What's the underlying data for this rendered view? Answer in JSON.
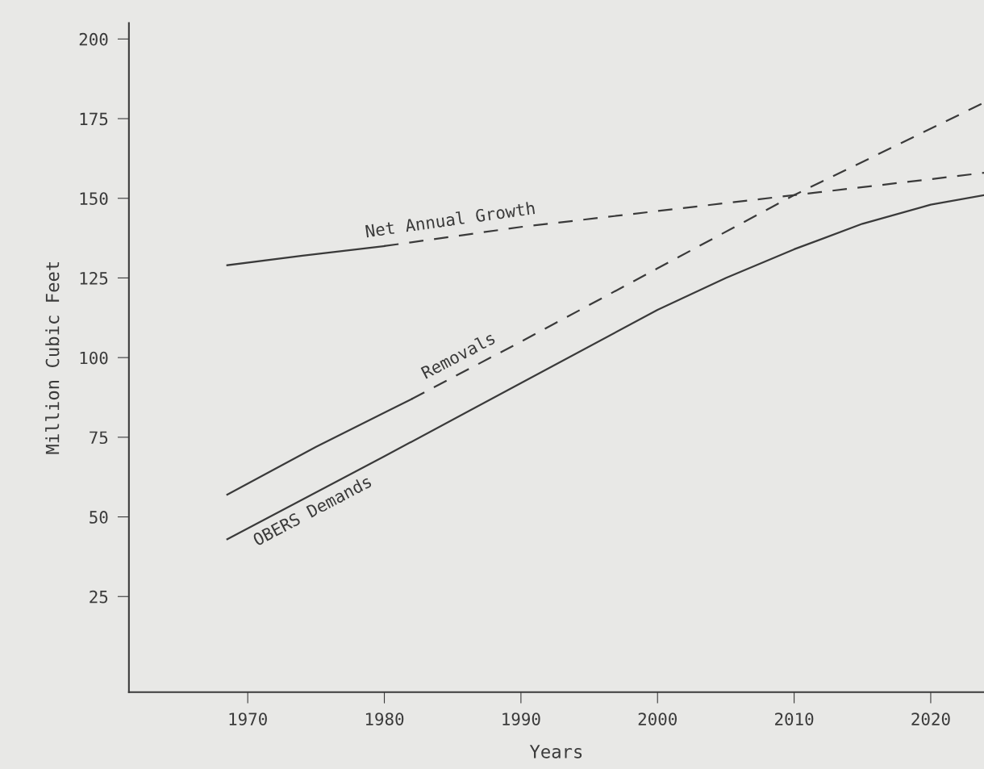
{
  "chart_data": {
    "type": "line",
    "xlabel": "Years",
    "ylabel": "Million Cubic Feet",
    "xlim": [
      1961.3,
      2023.9
    ],
    "ylim": [
      -5,
      205
    ],
    "xticks": [
      1970,
      1980,
      1990,
      2000,
      2010,
      2020
    ],
    "yticks": [
      25,
      50,
      75,
      100,
      125,
      150,
      175,
      200
    ],
    "grid": false,
    "marker": "none",
    "series": [
      {
        "color": "#3a3a3a",
        "line_style": "solid",
        "x": [
          1968.5,
          1974,
          1980
        ],
        "values": [
          129,
          132,
          135
        ]
      },
      {
        "name": "Net Annual Growth",
        "color": "#3a3a3a",
        "line_style": "dashed",
        "x": [
          1980,
          1990,
          2000,
          2010,
          2020,
          2023.9
        ],
        "values": [
          135,
          141,
          146,
          151,
          156,
          158
        ]
      },
      {
        "color": "#3a3a3a",
        "line_style": "solid",
        "x": [
          1968.5,
          1975,
          1982
        ],
        "values": [
          57,
          72,
          87
        ]
      },
      {
        "name": "Removals",
        "color": "#3a3a3a",
        "line_style": "dashed",
        "x": [
          1982,
          1990,
          2000,
          2010,
          2023.9
        ],
        "values": [
          87,
          105,
          128,
          151,
          180
        ]
      },
      {
        "name": "OBERS Demands",
        "color": "#3a3a3a",
        "line_style": "solid",
        "x": [
          1968.5,
          1980,
          1990,
          2000,
          2005,
          2010,
          2015,
          2020,
          2023.9
        ],
        "values": [
          43,
          69,
          92,
          115,
          125,
          134,
          142,
          148,
          151
        ]
      }
    ]
  }
}
